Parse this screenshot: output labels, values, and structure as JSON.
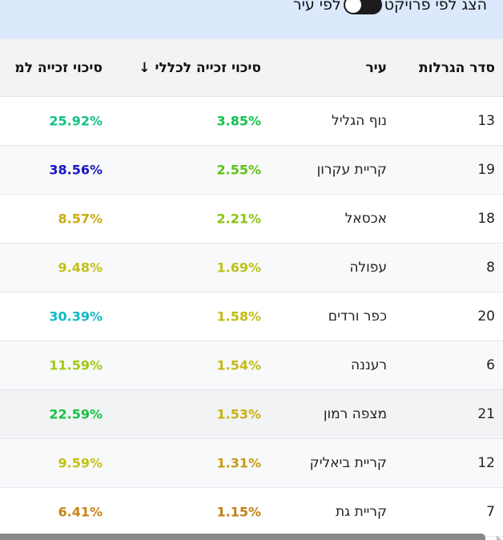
{
  "toggle": {
    "label_project": "הצג לפי פרויקט",
    "label_city": "לפי עיר",
    "state": "city"
  },
  "table": {
    "headers": [
      "סדר הגרלות",
      "עיר",
      "סיכוי זכייה לכללי ↓",
      "סיכוי זכייה למ"
    ],
    "rows": [
      {
        "order": "13",
        "city": "נוף הגליל",
        "overall": "3.85%",
        "overall_color": "#12c24e",
        "project": "25.92%",
        "project_color": "#12c27e"
      },
      {
        "order": "19",
        "city": "קריית עקרון",
        "overall": "2.55%",
        "overall_color": "#5cc214",
        "project": "38.56%",
        "project_color": "#1717c0"
      },
      {
        "order": "18",
        "city": "אכסאל",
        "overall": "2.21%",
        "overall_color": "#8cc212",
        "project": "8.57%",
        "project_color": "#c8aa12"
      },
      {
        "order": "8",
        "city": "עפולה",
        "overall": "1.69%",
        "overall_color": "#bcc212",
        "project": "9.48%",
        "project_color": "#c2c012"
      },
      {
        "order": "20",
        "city": "כפר ורדים",
        "overall": "1.58%",
        "overall_color": "#c4bc12",
        "project": "30.39%",
        "project_color": "#12b8c4"
      },
      {
        "order": "6",
        "city": "רעננה",
        "overall": "1.54%",
        "overall_color": "#c4ba12",
        "project": "11.59%",
        "project_color": "#a2c812"
      },
      {
        "order": "21",
        "city": "מצפה רמון",
        "overall": "1.53%",
        "overall_color": "#c8b012",
        "project": "22.59%",
        "project_color": "#12c242"
      },
      {
        "order": "12",
        "city": "קריית ביאליק",
        "overall": "1.31%",
        "overall_color": "#c89c12",
        "project": "9.59%",
        "project_color": "#c2c012"
      },
      {
        "order": "7",
        "city": "קריית גת",
        "overall": "1.15%",
        "overall_color": "#c08012",
        "project": "6.41%",
        "project_color": "#c88412"
      }
    ]
  }
}
